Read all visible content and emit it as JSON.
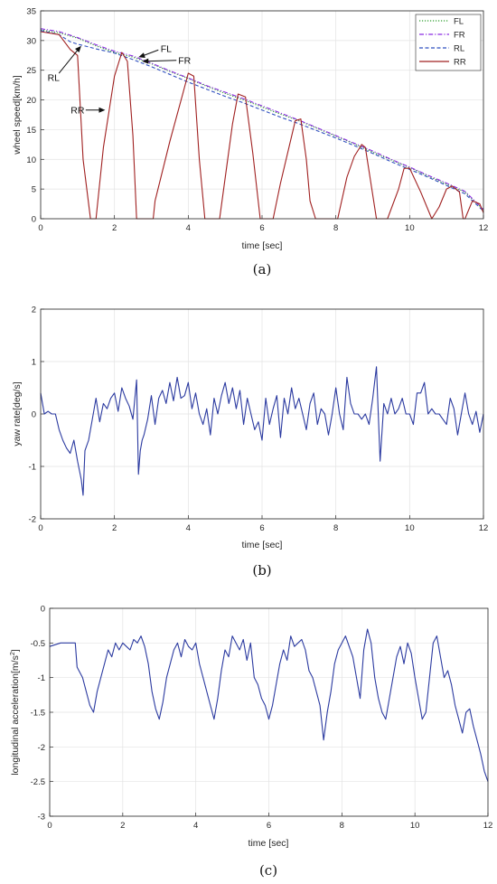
{
  "chart_data": [
    {
      "type": "line",
      "panel_label": "(a)",
      "xlabel": "time [sec]",
      "ylabel": "wheel speed[km/h]",
      "xlim": [
        0,
        12
      ],
      "ylim": [
        0,
        35
      ],
      "xticks": [
        0,
        2,
        4,
        6,
        8,
        10,
        12
      ],
      "yticks": [
        0,
        5,
        10,
        15,
        20,
        25,
        30,
        35
      ],
      "grid": true,
      "legend_position": "top-right",
      "colors": {
        "FL": "#2e9e2e",
        "FR": "#8a2be2",
        "RL": "#2f4fbf",
        "RR": "#a02020"
      },
      "series": [
        {
          "name": "FL",
          "style": "dotted",
          "x": [
            0,
            0.5,
            1.0,
            1.5,
            2.0,
            2.5,
            3.0,
            3.5,
            4.0,
            4.5,
            5.0,
            5.5,
            6.0,
            6.5,
            7.0,
            7.5,
            8.0,
            8.5,
            9.0,
            9.5,
            10.0,
            10.5,
            11.0,
            11.5,
            12.0
          ],
          "y": [
            31.8,
            31.3,
            30.4,
            29.1,
            28.0,
            27.2,
            26.1,
            24.8,
            23.6,
            22.3,
            21.1,
            20.0,
            18.8,
            17.6,
            16.5,
            15.2,
            13.9,
            12.6,
            11.2,
            9.9,
            8.6,
            7.2,
            5.8,
            4.5,
            1.5
          ]
        },
        {
          "name": "FR",
          "style": "dashdot",
          "x": [
            0,
            0.5,
            1.0,
            1.5,
            2.0,
            2.5,
            3.0,
            3.5,
            4.0,
            4.5,
            5.0,
            5.5,
            6.0,
            6.5,
            7.0,
            7.5,
            8.0,
            8.5,
            9.0,
            9.5,
            10.0,
            10.5,
            11.0,
            11.5,
            12.0
          ],
          "y": [
            32.0,
            31.5,
            30.5,
            29.3,
            28.2,
            27.4,
            26.2,
            24.9,
            23.7,
            22.4,
            21.3,
            20.2,
            19.0,
            17.8,
            16.6,
            15.3,
            14.0,
            12.7,
            11.4,
            10.0,
            8.7,
            7.3,
            6.0,
            4.6,
            1.6
          ]
        },
        {
          "name": "RL",
          "style": "dashed",
          "x": [
            0,
            0.5,
            0.8,
            1.0,
            1.5,
            2.0,
            2.5,
            3.0,
            3.5,
            4.0,
            4.5,
            5.0,
            5.5,
            6.0,
            6.5,
            7.0,
            7.5,
            8.0,
            8.5,
            9.0,
            9.5,
            10.0,
            10.5,
            11.0,
            11.5,
            12.0
          ],
          "y": [
            31.7,
            31.0,
            29.8,
            29.4,
            28.6,
            27.9,
            26.8,
            25.6,
            24.3,
            23.0,
            21.8,
            20.6,
            19.5,
            18.3,
            17.1,
            16.0,
            14.8,
            13.6,
            12.3,
            11.0,
            9.6,
            8.3,
            7.0,
            5.6,
            4.2,
            1.3
          ]
        },
        {
          "name": "RR",
          "style": "solid",
          "x": [
            0,
            0.5,
            0.8,
            1.0,
            1.15,
            1.35,
            1.5,
            1.7,
            2.0,
            2.2,
            2.35,
            2.5,
            2.6,
            2.7,
            3.05,
            3.1,
            3.5,
            3.85,
            4.0,
            4.15,
            4.3,
            4.45,
            4.6,
            4.85,
            5.2,
            5.35,
            5.55,
            5.75,
            5.95,
            6.0,
            6.3,
            6.5,
            6.9,
            7.05,
            7.2,
            7.3,
            7.45,
            7.75,
            8.05,
            8.3,
            8.5,
            8.7,
            8.8,
            8.95,
            9.1,
            9.4,
            9.7,
            9.85,
            10.0,
            10.3,
            10.6,
            10.8,
            11.0,
            11.15,
            11.35,
            11.45,
            11.5,
            11.7,
            11.9,
            12.0
          ],
          "y": [
            31.5,
            31.0,
            28.5,
            27.5,
            10.0,
            0.0,
            0.0,
            12.0,
            24.0,
            28.0,
            26.5,
            14.0,
            0.0,
            0.0,
            0.0,
            3.0,
            13.0,
            21.0,
            24.5,
            24.0,
            10.0,
            0.0,
            0.0,
            0.0,
            16.0,
            21.0,
            20.5,
            11.0,
            0.0,
            0.0,
            0.0,
            6.0,
            16.5,
            16.8,
            10.0,
            3.0,
            0.0,
            0.0,
            0.0,
            7.0,
            10.5,
            12.5,
            12.0,
            6.0,
            0.0,
            0.0,
            5.0,
            8.5,
            8.5,
            4.5,
            0.0,
            2.0,
            5.0,
            5.5,
            4.5,
            0.0,
            0.0,
            3.0,
            2.5,
            1.0
          ]
        }
      ],
      "annotations": [
        {
          "text": "FL",
          "x": 3.4,
          "y": 28.7,
          "arrow_to": [
            2.65,
            27.2
          ]
        },
        {
          "text": "FR",
          "x": 3.9,
          "y": 26.7,
          "arrow_to": [
            2.75,
            26.5
          ]
        },
        {
          "text": "RL",
          "x": 0.35,
          "y": 23.8,
          "arrow_to": [
            1.1,
            29.1
          ]
        },
        {
          "text": "RR",
          "x": 1.0,
          "y": 18.3,
          "arrow_to": [
            1.75,
            18.3
          ]
        }
      ]
    },
    {
      "type": "line",
      "panel_label": "(b)",
      "xlabel": "time [sec]",
      "ylabel": "yaw rate[deg/s]",
      "xlim": [
        0,
        12
      ],
      "ylim": [
        -2,
        2
      ],
      "xticks": [
        0,
        2,
        4,
        6,
        8,
        10,
        12
      ],
      "yticks": [
        -2,
        -1,
        0,
        1,
        2
      ],
      "grid": true,
      "color": "#2b3aa0",
      "series": [
        {
          "name": "",
          "x": [
            0,
            0.1,
            0.2,
            0.3,
            0.4,
            0.5,
            0.6,
            0.7,
            0.8,
            0.9,
            1.0,
            1.1,
            1.15,
            1.2,
            1.3,
            1.4,
            1.5,
            1.6,
            1.7,
            1.8,
            1.9,
            2.0,
            2.1,
            2.2,
            2.3,
            2.4,
            2.5,
            2.6,
            2.65,
            2.7,
            2.75,
            2.8,
            2.9,
            3.0,
            3.1,
            3.2,
            3.3,
            3.4,
            3.5,
            3.6,
            3.7,
            3.8,
            3.9,
            4.0,
            4.1,
            4.2,
            4.3,
            4.4,
            4.5,
            4.6,
            4.7,
            4.8,
            4.9,
            5.0,
            5.1,
            5.2,
            5.3,
            5.4,
            5.5,
            5.6,
            5.7,
            5.8,
            5.9,
            6.0,
            6.1,
            6.2,
            6.3,
            6.4,
            6.5,
            6.6,
            6.7,
            6.8,
            6.9,
            7.0,
            7.1,
            7.2,
            7.3,
            7.4,
            7.5,
            7.6,
            7.7,
            7.8,
            7.9,
            8.0,
            8.1,
            8.2,
            8.3,
            8.4,
            8.5,
            8.6,
            8.7,
            8.8,
            8.9,
            9.0,
            9.1,
            9.2,
            9.3,
            9.4,
            9.5,
            9.6,
            9.7,
            9.8,
            9.9,
            10.0,
            10.1,
            10.2,
            10.3,
            10.4,
            10.5,
            10.6,
            10.7,
            10.8,
            10.9,
            11.0,
            11.1,
            11.2,
            11.3,
            11.4,
            11.5,
            11.6,
            11.7,
            11.8,
            11.9,
            12.0
          ],
          "y": [
            0.4,
            0.0,
            0.05,
            0.0,
            0.0,
            -0.3,
            -0.5,
            -0.65,
            -0.75,
            -0.5,
            -0.9,
            -1.25,
            -1.55,
            -0.7,
            -0.5,
            -0.1,
            0.3,
            -0.15,
            0.2,
            0.1,
            0.3,
            0.4,
            0.05,
            0.5,
            0.3,
            0.15,
            -0.1,
            0.65,
            -1.15,
            -0.7,
            -0.5,
            -0.4,
            -0.1,
            0.35,
            -0.2,
            0.3,
            0.45,
            0.2,
            0.6,
            0.25,
            0.7,
            0.3,
            0.35,
            0.6,
            0.1,
            0.4,
            0.0,
            -0.2,
            0.1,
            -0.4,
            0.3,
            0.0,
            0.35,
            0.6,
            0.2,
            0.5,
            0.1,
            0.45,
            -0.2,
            0.3,
            0.0,
            -0.3,
            -0.15,
            -0.5,
            0.3,
            -0.2,
            0.1,
            0.35,
            -0.45,
            0.3,
            0.0,
            0.5,
            0.1,
            0.3,
            0.0,
            -0.3,
            0.2,
            0.4,
            -0.2,
            0.1,
            0.0,
            -0.4,
            0.0,
            0.5,
            0.0,
            -0.3,
            0.7,
            0.2,
            0.0,
            0.0,
            -0.1,
            0.0,
            -0.2,
            0.3,
            0.9,
            -0.9,
            0.2,
            0.0,
            0.3,
            0.0,
            0.1,
            0.3,
            0.0,
            0.0,
            -0.2,
            0.4,
            0.4,
            0.6,
            0.0,
            0.1,
            0.0,
            0.0,
            -0.1,
            -0.2,
            0.3,
            0.1,
            -0.4,
            0.0,
            0.4,
            0.0,
            -0.2,
            0.05,
            -0.35,
            0.0
          ]
        }
      ]
    },
    {
      "type": "line",
      "panel_label": "(c)",
      "xlabel": "time [sec]",
      "ylabel": "longitudinal acceleration[m/s",
      "ylabel_sup": "2",
      "ylabel_end": "]",
      "xlim": [
        0,
        12
      ],
      "ylim": [
        -3,
        0
      ],
      "xticks": [
        0,
        2,
        4,
        6,
        8,
        10,
        12
      ],
      "yticks": [
        -3,
        -2.5,
        -2,
        -1.5,
        -1,
        -0.5,
        0
      ],
      "grid": true,
      "color": "#2b3aa0",
      "series": [
        {
          "name": "",
          "x": [
            0,
            0.3,
            0.7,
            0.75,
            0.9,
            1.0,
            1.1,
            1.2,
            1.3,
            1.4,
            1.5,
            1.6,
            1.7,
            1.8,
            1.9,
            2.0,
            2.1,
            2.2,
            2.3,
            2.4,
            2.5,
            2.6,
            2.7,
            2.75,
            2.8,
            2.9,
            3.0,
            3.1,
            3.2,
            3.3,
            3.4,
            3.5,
            3.6,
            3.7,
            3.8,
            3.9,
            4.0,
            4.1,
            4.2,
            4.3,
            4.4,
            4.5,
            4.6,
            4.7,
            4.8,
            4.9,
            5.0,
            5.1,
            5.2,
            5.3,
            5.4,
            5.5,
            5.6,
            5.7,
            5.8,
            5.9,
            6.0,
            6.1,
            6.2,
            6.3,
            6.4,
            6.5,
            6.6,
            6.7,
            6.8,
            6.9,
            7.0,
            7.1,
            7.2,
            7.3,
            7.4,
            7.5,
            7.6,
            7.7,
            7.8,
            7.9,
            8.0,
            8.1,
            8.2,
            8.3,
            8.4,
            8.5,
            8.6,
            8.7,
            8.8,
            8.9,
            9.0,
            9.1,
            9.2,
            9.3,
            9.4,
            9.5,
            9.6,
            9.7,
            9.8,
            9.9,
            10.0,
            10.1,
            10.2,
            10.3,
            10.4,
            10.5,
            10.6,
            10.7,
            10.8,
            10.9,
            11.0,
            11.1,
            11.2,
            11.3,
            11.4,
            11.5,
            11.6,
            11.7,
            11.8,
            11.9,
            12.0
          ],
          "y": [
            -0.55,
            -0.5,
            -0.5,
            -0.85,
            -1.0,
            -1.2,
            -1.4,
            -1.5,
            -1.2,
            -1.0,
            -0.8,
            -0.6,
            -0.7,
            -0.5,
            -0.6,
            -0.5,
            -0.55,
            -0.6,
            -0.45,
            -0.5,
            -0.4,
            -0.55,
            -0.8,
            -1.0,
            -1.2,
            -1.45,
            -1.6,
            -1.35,
            -1.0,
            -0.8,
            -0.6,
            -0.5,
            -0.7,
            -0.45,
            -0.55,
            -0.6,
            -0.5,
            -0.8,
            -1.0,
            -1.2,
            -1.4,
            -1.6,
            -1.3,
            -0.9,
            -0.6,
            -0.7,
            -0.4,
            -0.5,
            -0.6,
            -0.45,
            -0.75,
            -0.5,
            -1.0,
            -1.1,
            -1.3,
            -1.4,
            -1.6,
            -1.4,
            -1.1,
            -0.8,
            -0.6,
            -0.75,
            -0.4,
            -0.55,
            -0.5,
            -0.45,
            -0.6,
            -0.9,
            -1.0,
            -1.2,
            -1.4,
            -1.9,
            -1.5,
            -1.2,
            -0.8,
            -0.6,
            -0.5,
            -0.4,
            -0.55,
            -0.7,
            -1.0,
            -1.3,
            -0.6,
            -0.3,
            -0.5,
            -1.0,
            -1.3,
            -1.5,
            -1.6,
            -1.3,
            -1.0,
            -0.7,
            -0.55,
            -0.8,
            -0.5,
            -0.65,
            -1.0,
            -1.3,
            -1.6,
            -1.5,
            -1.0,
            -0.5,
            -0.4,
            -0.7,
            -1.0,
            -0.9,
            -1.1,
            -1.4,
            -1.6,
            -1.8,
            -1.5,
            -1.45,
            -1.7,
            -1.9,
            -2.1,
            -2.35,
            -2.5
          ]
        }
      ]
    }
  ]
}
